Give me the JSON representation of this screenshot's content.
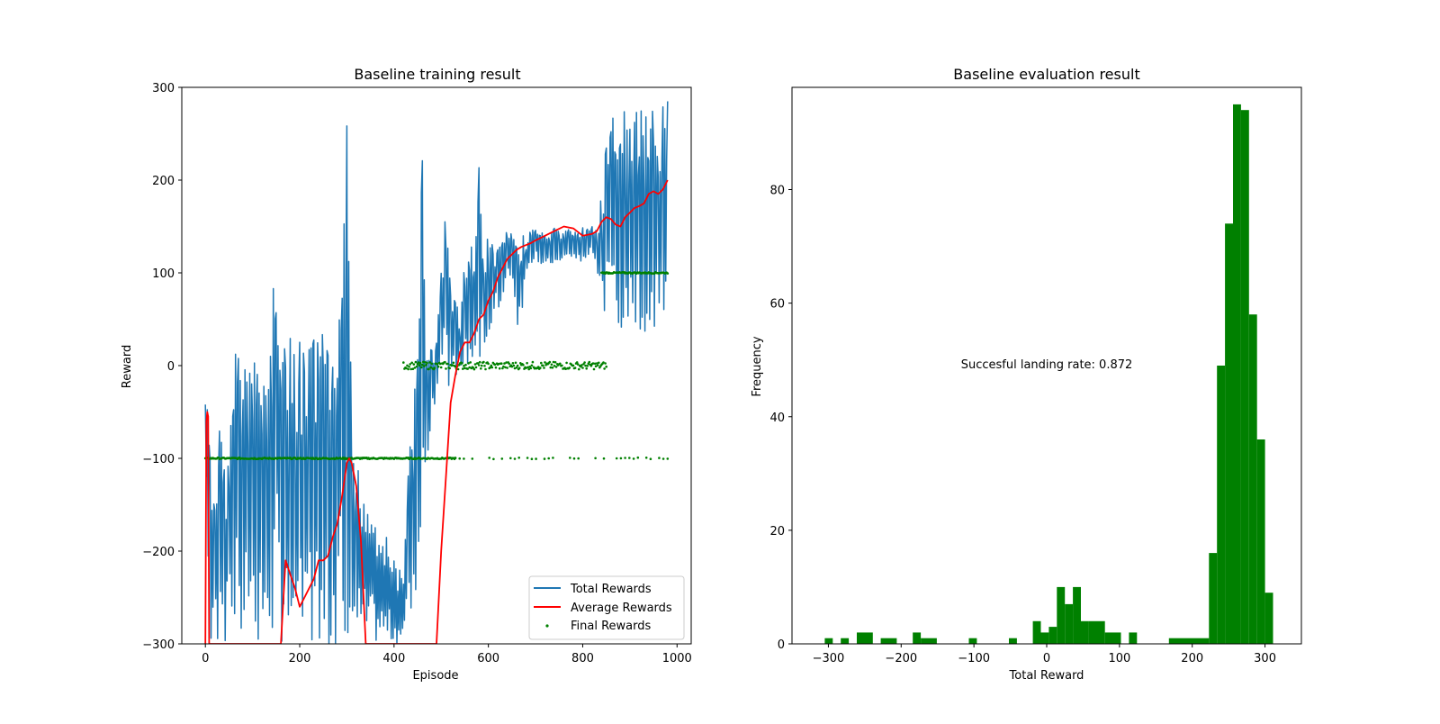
{
  "chart_data": [
    {
      "type": "line",
      "title": "Baseline training result",
      "xlabel": "Episode",
      "ylabel": "Reward",
      "xlim": [
        -50,
        1030
      ],
      "ylim": [
        -300,
        300
      ],
      "xticks": [
        0,
        200,
        400,
        600,
        800,
        1000
      ],
      "yticks": [
        -300,
        -200,
        -100,
        0,
        100,
        200,
        300
      ],
      "grid": false,
      "legend_position": "bottom-right",
      "colors": {
        "total": "#1f77b4",
        "average": "#ff0000",
        "final": "#008000"
      },
      "series": [
        {
          "name": "Total Rewards",
          "kind": "line",
          "color": "#1f77b4",
          "envelope": [
            [
              0,
              -100,
              -30
            ],
            [
              10,
              -300,
              -60
            ],
            [
              20,
              -300,
              -140
            ],
            [
              30,
              -300,
              -50
            ],
            [
              40,
              -300,
              -100
            ],
            [
              50,
              -300,
              -100
            ],
            [
              60,
              -300,
              30
            ],
            [
              70,
              -300,
              35
            ],
            [
              80,
              -300,
              0
            ],
            [
              90,
              -300,
              10
            ],
            [
              100,
              -300,
              30
            ],
            [
              110,
              -300,
              0
            ],
            [
              120,
              -300,
              40
            ],
            [
              130,
              -300,
              10
            ],
            [
              140,
              -300,
              45
            ],
            [
              150,
              -300,
              240
            ],
            [
              160,
              -300,
              40
            ],
            [
              170,
              -300,
              45
            ],
            [
              180,
              -300,
              30
            ],
            [
              190,
              -300,
              20
            ],
            [
              200,
              -300,
              40
            ],
            [
              210,
              -300,
              10
            ],
            [
              220,
              -300,
              45
            ],
            [
              230,
              -300,
              30
            ],
            [
              240,
              -300,
              45
            ],
            [
              250,
              -300,
              40
            ],
            [
              260,
              -300,
              30
            ],
            [
              270,
              -300,
              10
            ],
            [
              280,
              -300,
              40
            ],
            [
              290,
              -300,
              180
            ],
            [
              300,
              -300,
              275
            ],
            [
              310,
              -300,
              -60
            ],
            [
              320,
              -300,
              -100
            ],
            [
              420,
              -300,
              -230
            ],
            [
              430,
              -300,
              -90
            ],
            [
              440,
              -280,
              -50
            ],
            [
              450,
              -240,
              30
            ],
            [
              460,
              -200,
              230
            ],
            [
              470,
              -120,
              10
            ],
            [
              480,
              -60,
              20
            ],
            [
              490,
              -30,
              30
            ],
            [
              500,
              -20,
              110
            ],
            [
              510,
              -20,
              200
            ],
            [
              520,
              -30,
              80
            ],
            [
              530,
              -20,
              80
            ],
            [
              540,
              -20,
              50
            ],
            [
              550,
              -20,
              120
            ],
            [
              560,
              -10,
              130
            ],
            [
              570,
              -10,
              140
            ],
            [
              580,
              0,
              220
            ],
            [
              590,
              0,
              140
            ],
            [
              600,
              20,
              140
            ],
            [
              610,
              50,
              130
            ],
            [
              620,
              60,
              140
            ],
            [
              630,
              70,
              140
            ],
            [
              640,
              90,
              150
            ],
            [
              650,
              100,
              140
            ],
            [
              660,
              30,
              130
            ],
            [
              670,
              50,
              140
            ],
            [
              680,
              90,
              140
            ],
            [
              690,
              100,
              145
            ],
            [
              700,
              110,
              150
            ],
            [
              710,
              110,
              150
            ],
            [
              720,
              110,
              140
            ],
            [
              730,
              110,
              145
            ],
            [
              740,
              110,
              150
            ],
            [
              750,
              110,
              145
            ],
            [
              760,
              110,
              150
            ],
            [
              770,
              110,
              150
            ],
            [
              780,
              110,
              145
            ],
            [
              790,
              110,
              145
            ],
            [
              800,
              110,
              150
            ],
            [
              810,
              120,
              150
            ],
            [
              820,
              120,
              150
            ],
            [
              830,
              100,
              145
            ],
            [
              840,
              50,
              190
            ],
            [
              850,
              40,
              265
            ],
            [
              860,
              40,
              285
            ],
            [
              870,
              45,
              275
            ],
            [
              880,
              35,
              270
            ],
            [
              890,
              30,
              275
            ],
            [
              900,
              35,
              275
            ],
            [
              910,
              35,
              270
            ],
            [
              920,
              40,
              280
            ],
            [
              930,
              35,
              270
            ],
            [
              940,
              40,
              270
            ],
            [
              950,
              40,
              285
            ],
            [
              960,
              40,
              285
            ],
            [
              970,
              50,
              280
            ],
            [
              980,
              50,
              285
            ]
          ]
        },
        {
          "name": "Average Rewards",
          "kind": "line",
          "color": "#ff0000",
          "x": [
            0,
            2,
            4,
            6,
            8,
            160,
            170,
            180,
            190,
            200,
            210,
            220,
            230,
            240,
            250,
            260,
            270,
            280,
            290,
            300,
            305,
            310,
            320,
            330,
            340,
            490,
            500,
            510,
            520,
            530,
            540,
            550,
            560,
            570,
            580,
            590,
            600,
            610,
            620,
            630,
            640,
            650,
            660,
            670,
            680,
            690,
            700,
            720,
            740,
            760,
            780,
            800,
            820,
            830,
            840,
            850,
            860,
            870,
            880,
            890,
            900,
            910,
            920,
            930,
            940,
            950,
            960,
            970,
            980
          ],
          "y": [
            -300,
            -60,
            -50,
            -55,
            -300,
            -300,
            -210,
            -225,
            -240,
            -260,
            -250,
            -240,
            -230,
            -210,
            -210,
            -205,
            -185,
            -170,
            -140,
            -105,
            -100,
            -105,
            -130,
            -190,
            -300,
            -300,
            -200,
            -120,
            -40,
            -10,
            15,
            25,
            25,
            35,
            50,
            55,
            70,
            80,
            95,
            105,
            115,
            120,
            125,
            128,
            130,
            132,
            135,
            140,
            145,
            150,
            148,
            140,
            142,
            145,
            155,
            160,
            158,
            152,
            150,
            160,
            165,
            170,
            172,
            175,
            185,
            188,
            185,
            190,
            200
          ]
        },
        {
          "name": "Final Rewards",
          "kind": "scatter",
          "color": "#008000",
          "groups": [
            {
              "y": -100,
              "x": [
                0,
                530
              ]
            },
            {
              "y": -100,
              "x": [
                530,
                980
              ],
              "sparse": true
            },
            {
              "y": 0,
              "x": [
                420,
                850
              ]
            },
            {
              "y": 100,
              "x": [
                840,
                980
              ]
            }
          ]
        }
      ]
    },
    {
      "type": "bar",
      "title": "Baseline evaluation result",
      "xlabel": "Total Reward",
      "ylabel": "Frequency",
      "xlim": [
        -350,
        350
      ],
      "ylim": [
        0,
        98
      ],
      "xticks": [
        -300,
        -200,
        -100,
        0,
        100,
        200,
        300
      ],
      "yticks": [
        0,
        20,
        40,
        60,
        80
      ],
      "grid": false,
      "color": "#008000",
      "annotation": "Succesful landing rate: 0.872",
      "bins": [
        [
          -305,
          -294,
          1
        ],
        [
          -283,
          -272,
          1
        ],
        [
          -261,
          -239,
          2
        ],
        [
          -228,
          -206,
          1
        ],
        [
          -184,
          -173,
          2
        ],
        [
          -173,
          -151,
          1
        ],
        [
          -107,
          -96,
          1
        ],
        [
          -52,
          -41,
          1
        ],
        [
          -19,
          -8,
          4
        ],
        [
          -8,
          3,
          2
        ],
        [
          3,
          14,
          3
        ],
        [
          14,
          25,
          10
        ],
        [
          25,
          36,
          7
        ],
        [
          36,
          47,
          10
        ],
        [
          47,
          58,
          4
        ],
        [
          58,
          80,
          4
        ],
        [
          80,
          102,
          2
        ],
        [
          113,
          124,
          2
        ],
        [
          168,
          223,
          1
        ],
        [
          223,
          234,
          16
        ],
        [
          234,
          245,
          49
        ],
        [
          245,
          256,
          74
        ],
        [
          256,
          267,
          95
        ],
        [
          267,
          278,
          94
        ],
        [
          278,
          289,
          58
        ],
        [
          289,
          300,
          36
        ],
        [
          300,
          311,
          9
        ]
      ]
    }
  ]
}
